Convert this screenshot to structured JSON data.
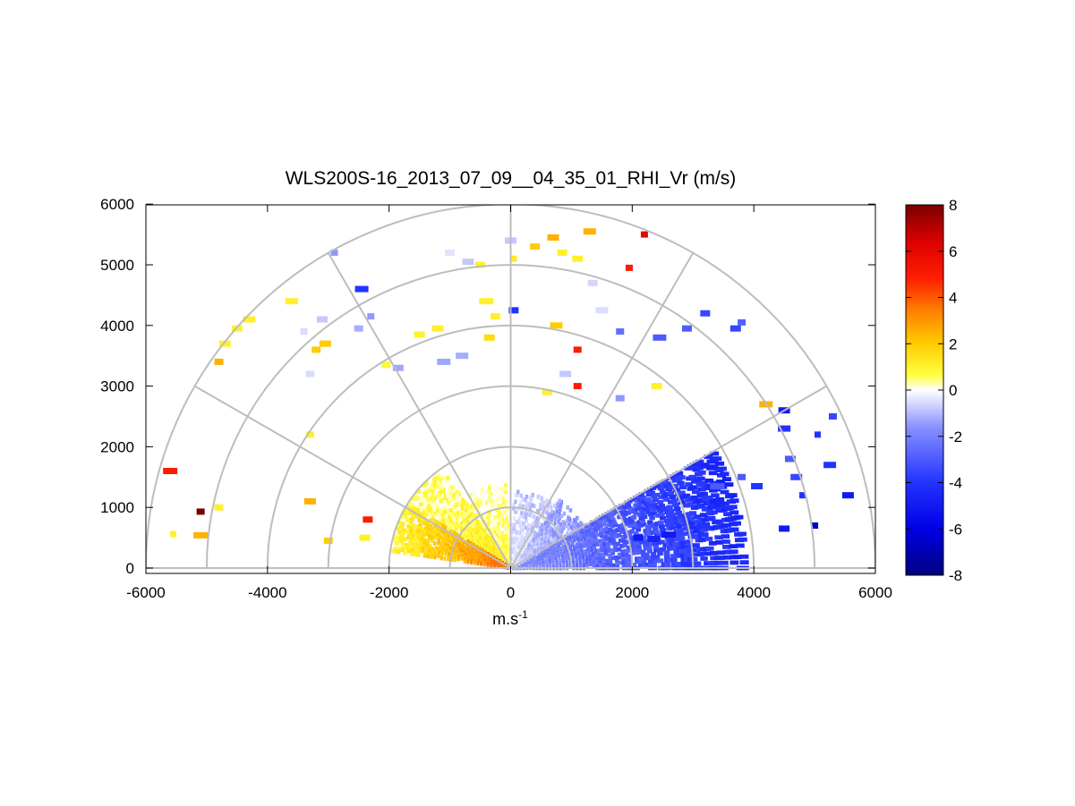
{
  "chart_data": {
    "type": "heatmap",
    "subtype": "polar-rhi-scan",
    "title": "WLS200S-16_2013_07_09__04_35_01_RHI_Vr (m/s)",
    "xlabel": "m.s",
    "xlabel_superscript": "-1",
    "ylabel": "",
    "xlim": [
      -6000,
      6000
    ],
    "ylim": [
      0,
      6000
    ],
    "x_ticks": [
      "-6000",
      "-4000",
      "-2000",
      "0",
      "2000",
      "4000",
      "6000"
    ],
    "y_ticks": [
      "0",
      "1000",
      "2000",
      "3000",
      "4000",
      "5000",
      "6000"
    ],
    "range_rings": [
      1000,
      2000,
      3000,
      4000,
      5000,
      6000
    ],
    "radial_spokes_deg": [
      0,
      30,
      60,
      90,
      120,
      150,
      180
    ],
    "colorbar": {
      "label": "",
      "range": [
        -8,
        8
      ],
      "ticks": [
        "8",
        "6",
        "4",
        "2",
        "0",
        "-2",
        "-4",
        "-6",
        "-8"
      ]
    },
    "dense_sectors": [
      {
        "az_from": 0,
        "az_to": 30,
        "r_from": 50,
        "r_to": 3900,
        "v_near": -1.5,
        "v_far": -4.6,
        "density": 0.9
      },
      {
        "az_from": 30,
        "az_to": 55,
        "r_from": 50,
        "r_to": 1400,
        "v_near": -0.6,
        "v_far": -1.6,
        "density": 0.8
      },
      {
        "az_from": 55,
        "az_to": 88,
        "r_from": 50,
        "r_to": 1300,
        "v_near": -0.3,
        "v_far": -0.9,
        "density": 0.55
      },
      {
        "az_from": 92,
        "az_to": 125,
        "r_from": 50,
        "r_to": 1400,
        "v_near": 0.6,
        "v_far": 0.3,
        "density": 0.6
      },
      {
        "az_from": 125,
        "az_to": 148,
        "r_from": 50,
        "r_to": 2000,
        "v_near": 1.2,
        "v_far": 0.4,
        "density": 0.85
      },
      {
        "az_from": 148,
        "az_to": 172,
        "r_from": 50,
        "r_to": 2000,
        "v_near": 3.8,
        "v_far": 0.8,
        "density": 0.95
      }
    ],
    "sparse_points": [
      {
        "x": -5600,
        "y": 1600,
        "v": 5
      },
      {
        "x": -5100,
        "y": 930,
        "v": 8
      },
      {
        "x": -5550,
        "y": 560,
        "v": 1
      },
      {
        "x": -5100,
        "y": 540,
        "v": 2.5
      },
      {
        "x": -4700,
        "y": 3700,
        "v": 1
      },
      {
        "x": -4500,
        "y": 3950,
        "v": 1
      },
      {
        "x": -4300,
        "y": 4100,
        "v": 1
      },
      {
        "x": -4800,
        "y": 3400,
        "v": 2.5
      },
      {
        "x": -3600,
        "y": 4400,
        "v": 1
      },
      {
        "x": -3200,
        "y": 3600,
        "v": 2
      },
      {
        "x": -3050,
        "y": 3700,
        "v": 2
      },
      {
        "x": -3300,
        "y": 3200,
        "v": -0.5
      },
      {
        "x": -3400,
        "y": 3900,
        "v": -0.5
      },
      {
        "x": -3100,
        "y": 4100,
        "v": -0.8
      },
      {
        "x": -2900,
        "y": 5200,
        "v": -1.5
      },
      {
        "x": -2450,
        "y": 4600,
        "v": -4
      },
      {
        "x": -2500,
        "y": 3950,
        "v": -1.2
      },
      {
        "x": -2300,
        "y": 4150,
        "v": -1.5
      },
      {
        "x": -2050,
        "y": 3350,
        "v": 0.8
      },
      {
        "x": -1850,
        "y": 3300,
        "v": -1.3
      },
      {
        "x": -1500,
        "y": 3850,
        "v": 1
      },
      {
        "x": -1200,
        "y": 3950,
        "v": 1
      },
      {
        "x": -1100,
        "y": 3400,
        "v": -1.3
      },
      {
        "x": -800,
        "y": 3500,
        "v": -1.2
      },
      {
        "x": -1000,
        "y": 5200,
        "v": -0.4
      },
      {
        "x": -700,
        "y": 5050,
        "v": -0.8
      },
      {
        "x": -500,
        "y": 5000,
        "v": 1
      },
      {
        "x": -400,
        "y": 4400,
        "v": 1
      },
      {
        "x": -250,
        "y": 4150,
        "v": 1
      },
      {
        "x": -350,
        "y": 3800,
        "v": 1.6
      },
      {
        "x": 50,
        "y": 4250,
        "v": -4
      },
      {
        "x": 50,
        "y": 5100,
        "v": 1.2
      },
      {
        "x": 0,
        "y": 5400,
        "v": -0.8
      },
      {
        "x": 400,
        "y": 5300,
        "v": 2
      },
      {
        "x": 700,
        "y": 5450,
        "v": 2.5
      },
      {
        "x": 850,
        "y": 5200,
        "v": 1
      },
      {
        "x": 1300,
        "y": 5550,
        "v": 2.5
      },
      {
        "x": 1100,
        "y": 5100,
        "v": 1
      },
      {
        "x": 2200,
        "y": 5500,
        "v": 6
      },
      {
        "x": 1950,
        "y": 4950,
        "v": 5
      },
      {
        "x": 1350,
        "y": 4700,
        "v": -0.6
      },
      {
        "x": 1500,
        "y": 4250,
        "v": -0.5
      },
      {
        "x": 1100,
        "y": 3600,
        "v": 5
      },
      {
        "x": 1100,
        "y": 3000,
        "v": 5
      },
      {
        "x": 750,
        "y": 4000,
        "v": 2
      },
      {
        "x": 900,
        "y": 3200,
        "v": -0.8
      },
      {
        "x": 600,
        "y": 2900,
        "v": 1
      },
      {
        "x": 1800,
        "y": 3900,
        "v": -2.5
      },
      {
        "x": 2450,
        "y": 3800,
        "v": -3
      },
      {
        "x": 2900,
        "y": 3950,
        "v": -3
      },
      {
        "x": 3200,
        "y": 4200,
        "v": -3.5
      },
      {
        "x": 3700,
        "y": 3950,
        "v": -3.5
      },
      {
        "x": 3800,
        "y": 4050,
        "v": -2.8
      },
      {
        "x": 2400,
        "y": 3000,
        "v": 1
      },
      {
        "x": 1800,
        "y": 2800,
        "v": -1.5
      },
      {
        "x": 4200,
        "y": 2700,
        "v": 2.5
      },
      {
        "x": 4500,
        "y": 2600,
        "v": -5
      },
      {
        "x": 4500,
        "y": 2300,
        "v": -4
      },
      {
        "x": 5050,
        "y": 2200,
        "v": -4
      },
      {
        "x": 5300,
        "y": 2500,
        "v": -3.5
      },
      {
        "x": 5250,
        "y": 1700,
        "v": -4
      },
      {
        "x": 5550,
        "y": 1200,
        "v": -5
      },
      {
        "x": 4700,
        "y": 1500,
        "v": -3.5
      },
      {
        "x": 4600,
        "y": 1800,
        "v": -3
      },
      {
        "x": 4050,
        "y": 1350,
        "v": -4
      },
      {
        "x": 3800,
        "y": 1500,
        "v": -3
      },
      {
        "x": 3400,
        "y": 1350,
        "v": -3
      },
      {
        "x": 4500,
        "y": 650,
        "v": -5
      },
      {
        "x": 5000,
        "y": 700,
        "v": -6.5
      },
      {
        "x": 4800,
        "y": 1200,
        "v": -4
      },
      {
        "x": 2600,
        "y": 550,
        "v": -5
      },
      {
        "x": 2350,
        "y": 480,
        "v": -4.5
      },
      {
        "x": 3150,
        "y": 700,
        "v": -4
      },
      {
        "x": 2100,
        "y": 500,
        "v": -5
      },
      {
        "x": -3300,
        "y": 2200,
        "v": 1
      },
      {
        "x": -3300,
        "y": 1100,
        "v": 2.5
      },
      {
        "x": -4800,
        "y": 1000,
        "v": 1
      },
      {
        "x": -3000,
        "y": 450,
        "v": 2
      },
      {
        "x": -2400,
        "y": 500,
        "v": 1
      },
      {
        "x": -2350,
        "y": 800,
        "v": 5
      }
    ]
  }
}
